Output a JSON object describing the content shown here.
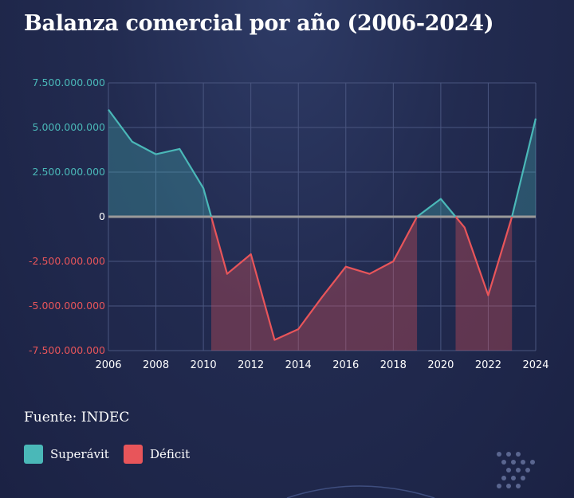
{
  "title": "Balanza comercial por año (2006-2024)",
  "source": "Fuente: INDEC",
  "colors": {
    "surplus": "#4ab8b8",
    "deficit": "#e8555a",
    "surplus_fill": "rgba(74,184,184,0.30)",
    "deficit_fill": "rgba(232,85,90,0.33)",
    "grid": "#4a5680",
    "zero_line": "#9a9a9a"
  },
  "legend": [
    {
      "label": "Superávit",
      "color": "#4ab8b8"
    },
    {
      "label": "Déficit",
      "color": "#e8555a"
    }
  ],
  "chart_data": {
    "type": "area",
    "title": "Balanza comercial por año (2006-2024)",
    "xlabel": "",
    "ylabel": "",
    "x": [
      2006,
      2007,
      2008,
      2009,
      2010,
      2011,
      2012,
      2013,
      2014,
      2015,
      2016,
      2017,
      2018,
      2019,
      2020,
      2021,
      2022,
      2023,
      2024
    ],
    "series": [
      {
        "name": "",
        "values": [
          6000000000,
          4200000000,
          3500000000,
          3800000000,
          1600000000,
          -3200000000,
          -2100000000,
          -6900000000,
          -6300000000,
          -4500000000,
          -2800000000,
          -3200000000,
          -2500000000,
          0,
          1000000000,
          -600000000,
          -4400000000,
          0,
          5500000000
        ]
      }
    ],
    "xticks": [
      "2006",
      "2008",
      "2010",
      "2012",
      "2014",
      "2016",
      "2018",
      "2020",
      "2022",
      "2024"
    ],
    "yticks": [
      "7.500.000.000",
      "5.000.000.000",
      "2.500.000.000",
      "0",
      "-2.500.000.000",
      "-5.000.000.000",
      "-7.500.000.000"
    ],
    "ylim": [
      -7500000000,
      7500000000
    ],
    "xlim": [
      2006,
      2024
    ],
    "grid": true,
    "legend_position": "bottom-left"
  }
}
